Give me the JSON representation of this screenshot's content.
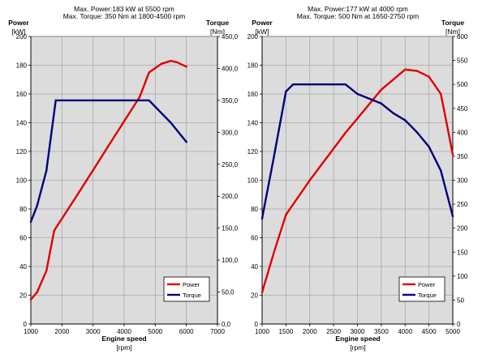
{
  "chart_data": [
    {
      "type": "line",
      "title_lines": [
        "Max. Power:183 kW at 5500 rpm",
        "Max. Torque: 350 Nm at 1800-4500 rpm"
      ],
      "left_axis_label": [
        "Power",
        "[kW]"
      ],
      "right_axis_label": [
        "Torque",
        "[Nm]"
      ],
      "xlabel": [
        "Engine speed",
        "[rpm]"
      ],
      "xlim": [
        1000,
        7000
      ],
      "x_ticks": [
        "1000",
        "2000",
        "3000",
        "4000",
        "5000",
        "6000",
        "7000"
      ],
      "ylim_left": [
        0,
        200
      ],
      "y_ticks_left": [
        "0",
        "20",
        "40",
        "60",
        "80",
        "100",
        "120",
        "140",
        "160",
        "180",
        "200"
      ],
      "ylim_right": [
        0,
        450
      ],
      "y_ticks_right": [
        "0,0",
        "50,0",
        "100,0",
        "150,0",
        "200,0",
        "250,0",
        "300,0",
        "350,0",
        "400,0",
        "450,0"
      ],
      "grid": true,
      "legend_position": "bottom-right",
      "series": [
        {
          "name": "Power",
          "axis": "left",
          "color": "#e00000",
          "x": [
            1000,
            1200,
            1500,
            1750,
            2500,
            3000,
            3500,
            4000,
            4500,
            4800,
            5000,
            5200,
            5500,
            5700,
            6000
          ],
          "y": [
            17,
            22,
            37,
            65,
            90,
            107,
            124,
            141,
            158,
            175,
            178,
            181,
            183,
            182,
            179
          ]
        },
        {
          "name": "Torque",
          "axis": "right",
          "color": "#00007a",
          "x": [
            1000,
            1200,
            1500,
            1800,
            2500,
            3000,
            3500,
            4000,
            4500,
            4800,
            5000,
            5500,
            6000
          ],
          "y": [
            160,
            185,
            240,
            350,
            350,
            350,
            350,
            350,
            350,
            350,
            340,
            315,
            285
          ]
        }
      ]
    },
    {
      "type": "line",
      "title_lines": [
        "Max. Power:177 kW at 4000 rpm",
        "Max. Torque: 500 Nm at 1650-2750 rpm"
      ],
      "left_axis_label": [
        "Power",
        "[kW]"
      ],
      "right_axis_label": [
        "Torque",
        "[Nm]"
      ],
      "xlabel": [
        "Engine speed",
        "[rpm]"
      ],
      "xlim": [
        1000,
        5000
      ],
      "x_ticks": [
        "1000",
        "1500",
        "2000",
        "2500",
        "3000",
        "3500",
        "4000",
        "4500",
        "5000"
      ],
      "ylim_left": [
        0,
        200
      ],
      "y_ticks_left": [
        "0",
        "20",
        "40",
        "60",
        "80",
        "100",
        "120",
        "140",
        "160",
        "180",
        "200"
      ],
      "ylim_right": [
        0,
        600
      ],
      "y_ticks_right": [
        "0",
        "50",
        "100",
        "150",
        "200",
        "250",
        "300",
        "350",
        "400",
        "450",
        "500",
        "550",
        "600"
      ],
      "grid": true,
      "legend_position": "bottom-right",
      "series": [
        {
          "name": "Power",
          "axis": "left",
          "color": "#e00000",
          "x": [
            1000,
            1250,
            1500,
            1750,
            2000,
            2250,
            2500,
            2750,
            3000,
            3250,
            3500,
            3750,
            4000,
            4250,
            4500,
            4750,
            5000
          ],
          "y": [
            22,
            50,
            76,
            88,
            100,
            111,
            122,
            133,
            143,
            153,
            163,
            170,
            177,
            176,
            172,
            160,
            118
          ]
        },
        {
          "name": "Torque",
          "axis": "right",
          "color": "#00007a",
          "x": [
            1000,
            1250,
            1500,
            1650,
            2000,
            2500,
            2750,
            3000,
            3250,
            3500,
            3750,
            4000,
            4250,
            4500,
            4750,
            5000
          ],
          "y": [
            220,
            350,
            485,
            500,
            500,
            500,
            500,
            480,
            470,
            460,
            440,
            425,
            400,
            370,
            320,
            225
          ]
        }
      ]
    }
  ]
}
